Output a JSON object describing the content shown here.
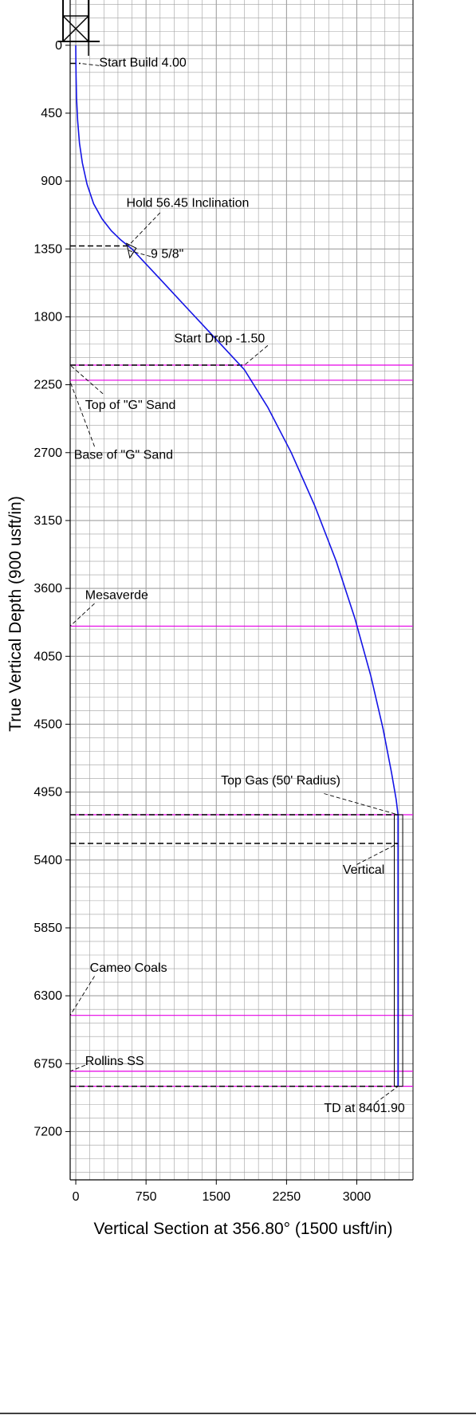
{
  "chart_data": {
    "type": "line",
    "xlabel": "Vertical Section at 356.80° (1500 usft/in)",
    "ylabel": "True Vertical Depth (900 usft/in)",
    "xlim": [
      -60,
      3600
    ],
    "ylim": [
      7520,
      -300
    ],
    "x_ticks": [
      0,
      750,
      1500,
      2250,
      3000
    ],
    "x_tick_labels": [
      "0",
      "750",
      "1500",
      "2250",
      "3000"
    ],
    "y_ticks": [
      0,
      450,
      900,
      1350,
      1800,
      2250,
      2700,
      3150,
      3600,
      4050,
      4500,
      4950,
      5400,
      5850,
      6300,
      6750,
      7200
    ],
    "y_tick_labels": [
      "0",
      "450",
      "900",
      "1350",
      "1800",
      "2250",
      "2700",
      "3150",
      "3600",
      "4050",
      "4500",
      "4950",
      "5400",
      "5850",
      "6300",
      "6750",
      "7200"
    ],
    "grid": true,
    "colors": {
      "wellpath": "#1414e6",
      "formation": "#e600e6",
      "grid": "#a0a0a0",
      "annotation": "#000000"
    },
    "series": [
      {
        "x": [
          0,
          1,
          3,
          8,
          20,
          40,
          70,
          120,
          190,
          280,
          380,
          480,
          560,
          600,
          900,
          1200,
          1500,
          1800,
          2050,
          2300,
          2550,
          2780,
          2980,
          3150,
          3280,
          3370,
          3420,
          3440,
          3440
        ],
        "y": [
          0,
          120,
          200,
          350,
          500,
          650,
          780,
          920,
          1050,
          1150,
          1230,
          1290,
          1330,
          1350,
          1550,
          1750,
          1950,
          2150,
          2400,
          2700,
          3050,
          3420,
          3800,
          4180,
          4530,
          4820,
          5000,
          5100,
          6900
        ]
      }
    ],
    "formations": [
      {
        "tvd": 2120
      },
      {
        "tvd": 2220
      },
      {
        "tvd": 3850
      },
      {
        "tvd": 5100
      },
      {
        "tvd": 6430
      },
      {
        "tvd": 6800
      },
      {
        "tvd": 6900
      }
    ],
    "dashed_levels": [
      {
        "tvd": 120,
        "x_start": -60,
        "x_end": 50
      },
      {
        "tvd": 1330,
        "x_start": -60,
        "x_end": 560
      },
      {
        "tvd": 2120,
        "x_start": -60,
        "x_end": 1800
      },
      {
        "tvd": 5100,
        "x_start": -60,
        "x_end": 3440
      },
      {
        "tvd": 5290,
        "x_start": -60,
        "x_end": 3440
      },
      {
        "tvd": 6900,
        "x_start": -60,
        "x_end": 3440
      }
    ],
    "annotations": [
      {
        "text": "Start Build 4.00",
        "label_x": 250,
        "label_y": 140,
        "anchor": "start",
        "target_x": 50,
        "target_y": 120,
        "from_x": 250,
        "from_y": 135
      },
      {
        "text": "Hold 56.45 Inclination",
        "label_x": 540,
        "label_y": 1070,
        "anchor": "start",
        "target_x": 560,
        "target_y": 1330,
        "from_x": 900,
        "from_y": 1110
      },
      {
        "text": "9 5/8\"",
        "label_x": 800,
        "label_y": 1410,
        "anchor": "start",
        "target_x": 560,
        "target_y": 1360,
        "from_x": 800,
        "from_y": 1400
      },
      {
        "text": "Start Drop -1.50",
        "label_x": 1050,
        "label_y": 1970,
        "anchor": "start",
        "target_x": 1800,
        "target_y": 2120,
        "from_x": 2050,
        "from_y": 1990
      },
      {
        "text": "Top of \"G\" Sand",
        "label_x": 100,
        "label_y": 2410,
        "anchor": "start",
        "target_x": -60,
        "target_y": 2120,
        "from_x": 290,
        "from_y": 2310
      },
      {
        "text": "Base of \"G\" Sand",
        "label_x": -20,
        "label_y": 2740,
        "anchor": "start",
        "target_x": -60,
        "target_y": 2230,
        "from_x": 200,
        "from_y": 2660
      },
      {
        "text": "Mesaverde",
        "label_x": 100,
        "label_y": 3670,
        "anchor": "start",
        "target_x": -60,
        "target_y": 3850,
        "from_x": 200,
        "from_y": 3700
      },
      {
        "text": "Top Gas (50' Radius)",
        "label_x": 1550,
        "label_y": 4900,
        "anchor": "start",
        "target_x": 3440,
        "target_y": 5100,
        "from_x": 2650,
        "from_y": 4960
      },
      {
        "text": "Vertical",
        "label_x": 2850,
        "label_y": 5490,
        "anchor": "start",
        "target_x": 3440,
        "target_y": 5290,
        "from_x": 3000,
        "from_y": 5430
      },
      {
        "text": "Cameo Coals",
        "label_x": 150,
        "label_y": 6140,
        "anchor": "start",
        "target_x": -60,
        "target_y": 6430,
        "from_x": 200,
        "from_y": 6170
      },
      {
        "text": "Rollins SS",
        "label_x": 100,
        "label_y": 6760,
        "anchor": "start",
        "target_x": -60,
        "target_y": 6800,
        "from_x": 100,
        "from_y": 6760
      },
      {
        "text": "TD at 8401.90",
        "label_x": 2650,
        "label_y": 7070,
        "anchor": "start",
        "target_x": 3440,
        "target_y": 6900,
        "from_x": 3200,
        "from_y": 7010
      }
    ]
  }
}
